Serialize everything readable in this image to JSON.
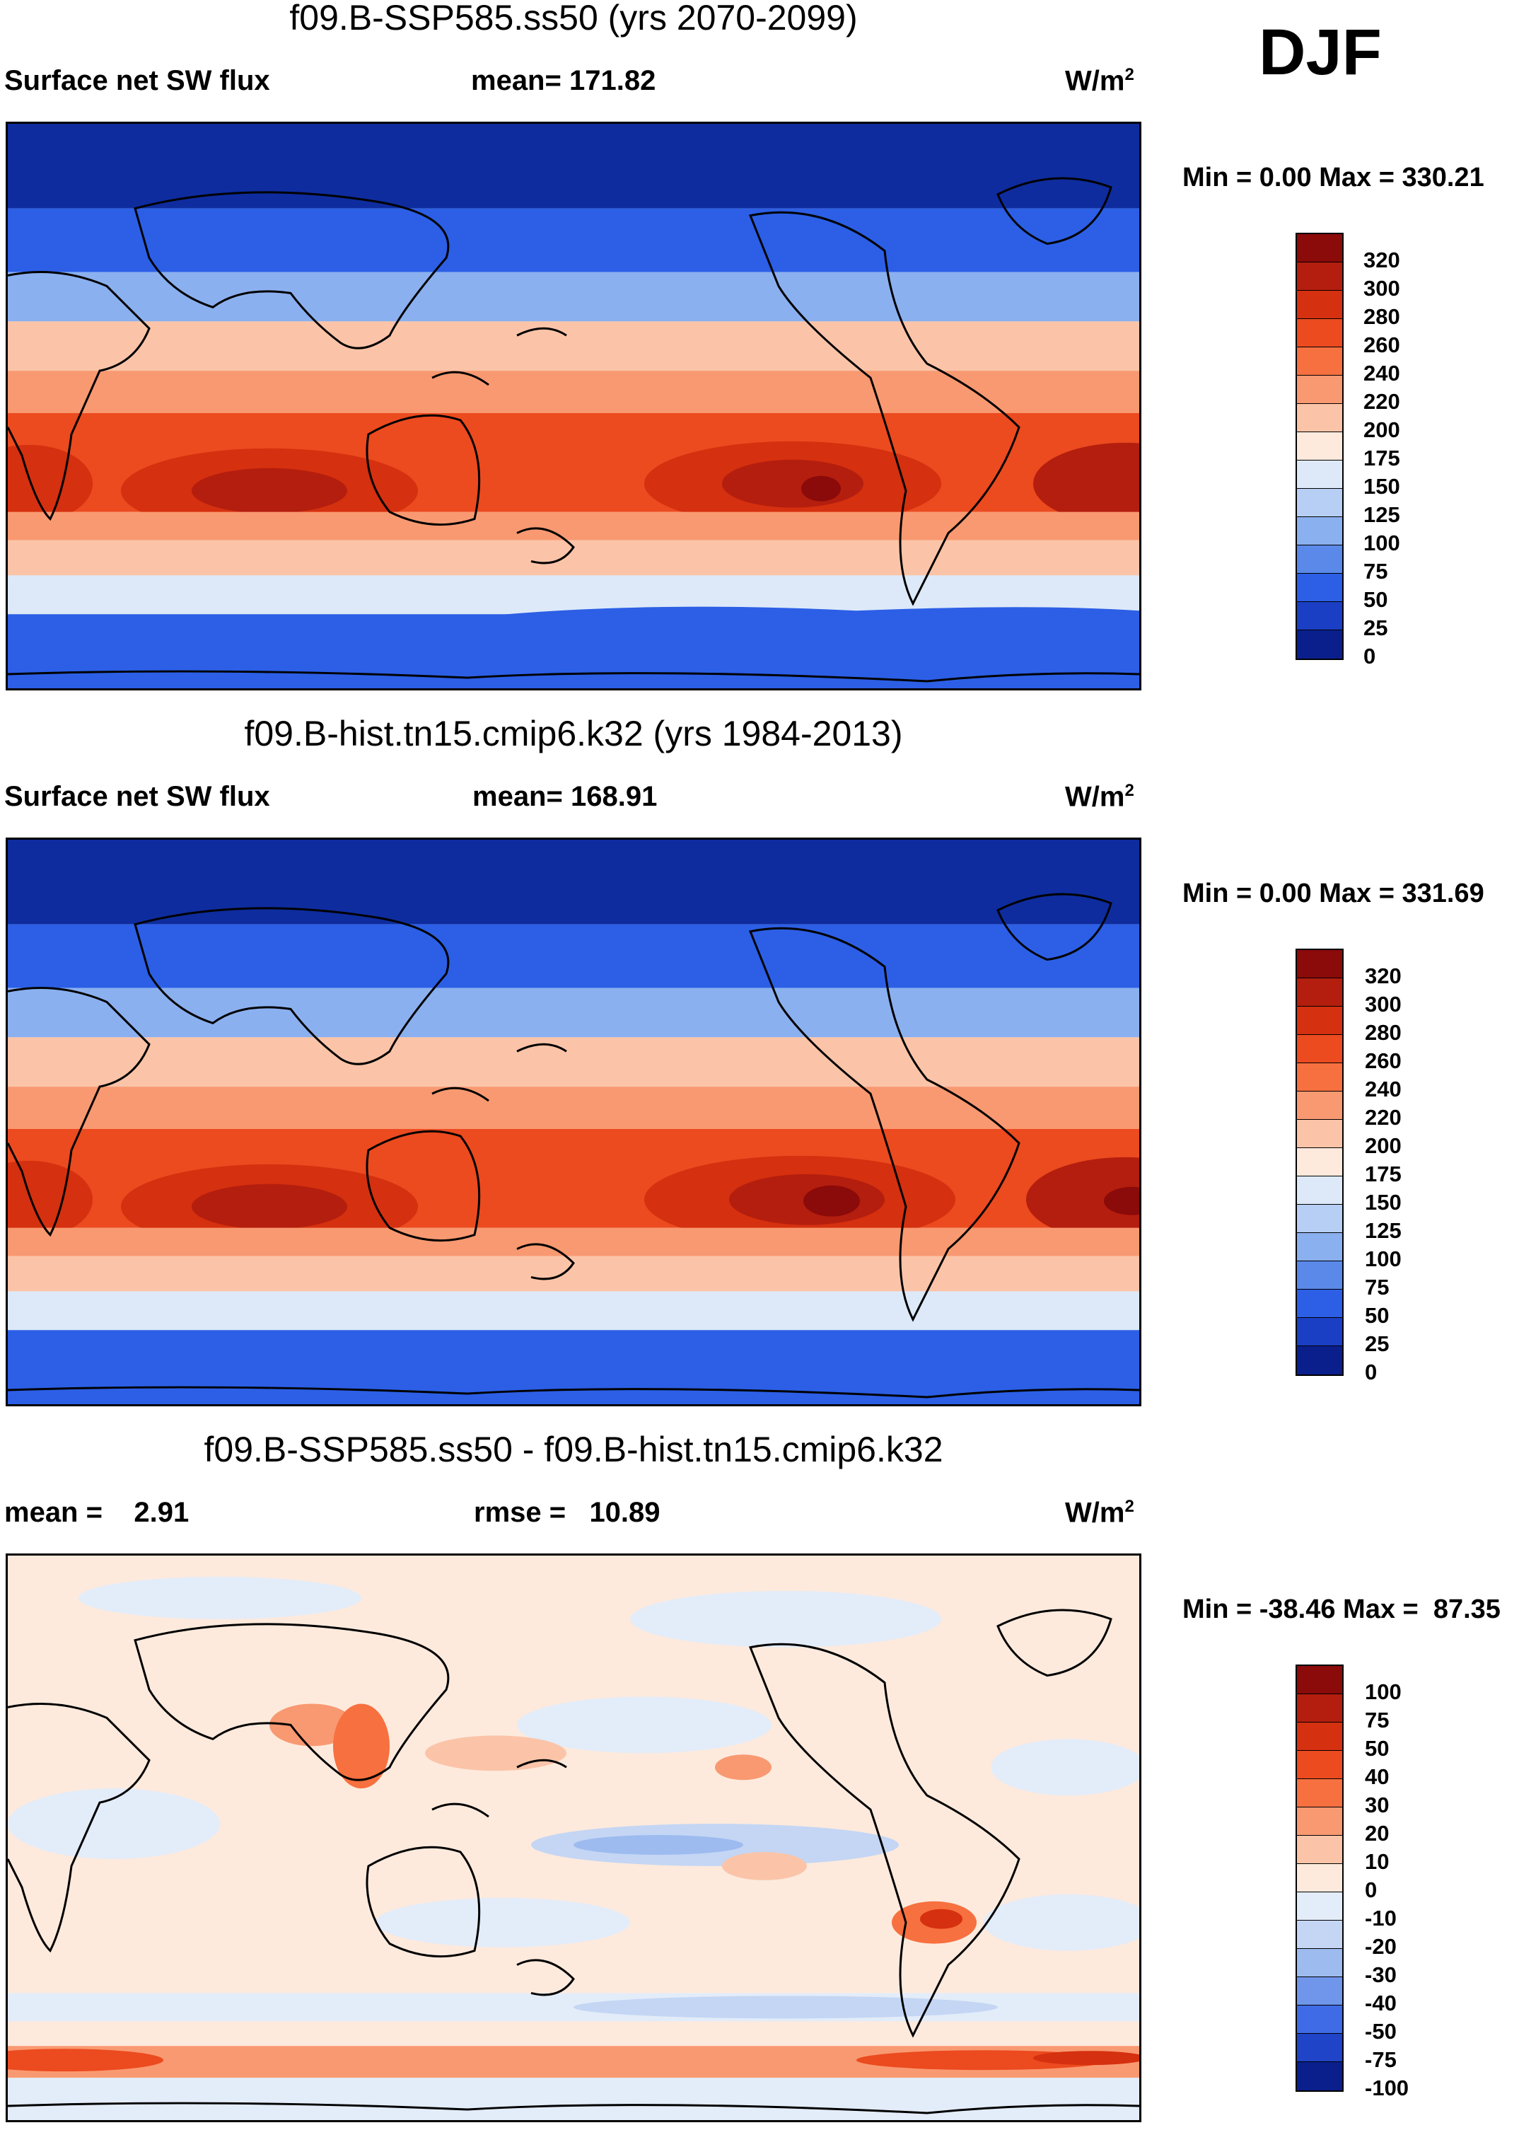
{
  "season": "DJF",
  "panels": [
    {
      "title": "f09.B-SSP585.ss50 (yrs 2070-2099)",
      "left": "Surface net SW flux",
      "center": "mean= 171.82",
      "units": "W/m",
      "units_sup": "2",
      "minmax": "Min =    0.00 Max = 330.21",
      "type": "abs",
      "levels": [
        "320",
        "300",
        "280",
        "260",
        "240",
        "220",
        "200",
        "175",
        "150",
        "125",
        "100",
        "75",
        "50",
        "25",
        "0"
      ],
      "colors": [
        "#8b0a0a",
        "#b41e0e",
        "#d5300f",
        "#ec4a1f",
        "#f7703f",
        "#f99971",
        "#fbc4a8",
        "#fdeadd",
        "#dde9f8",
        "#b7cff4",
        "#8bb0ef",
        "#5a89ea",
        "#2c5fe6",
        "#1a3fc4",
        "#0a1f8c"
      ]
    },
    {
      "title": "f09.B-hist.tn15.cmip6.k32 (yrs 1984-2013)",
      "left": "Surface net SW flux",
      "center": "mean= 168.91",
      "units": "W/m",
      "units_sup": "2",
      "minmax": "Min =    0.00 Max = 331.69",
      "type": "abs",
      "levels": [
        "320",
        "300",
        "280",
        "260",
        "240",
        "220",
        "200",
        "175",
        "150",
        "125",
        "100",
        "75",
        "50",
        "25",
        "0"
      ],
      "colors": [
        "#8b0a0a",
        "#b41e0e",
        "#d5300f",
        "#ec4a1f",
        "#f7703f",
        "#f99971",
        "#fbc4a8",
        "#fdeadd",
        "#dde9f8",
        "#b7cff4",
        "#8bb0ef",
        "#5a89ea",
        "#2c5fe6",
        "#1a3fc4",
        "#0a1f8c"
      ]
    },
    {
      "title": "f09.B-SSP585.ss50 - f09.B-hist.tn15.cmip6.k32",
      "left": "mean =    2.91",
      "center": "rmse =   10.89",
      "units": "W/m",
      "units_sup": "2",
      "minmax": "Min = -38.46 Max =  87.35",
      "type": "diff",
      "levels": [
        "100",
        "75",
        "50",
        "40",
        "30",
        "20",
        "10",
        "0",
        "-10",
        "-20",
        "-30",
        "-40",
        "-50",
        "-75",
        "-100"
      ],
      "colors": [
        "#8b0a0a",
        "#b41e0e",
        "#d5300f",
        "#ec4a1f",
        "#f7703f",
        "#f99971",
        "#fbc4a8",
        "#fdeadd",
        "#e3ecf9",
        "#c4d6f4",
        "#9dbbef",
        "#6f96ea",
        "#3f6be6",
        "#1f44c8",
        "#0a1f8c"
      ]
    }
  ]
}
